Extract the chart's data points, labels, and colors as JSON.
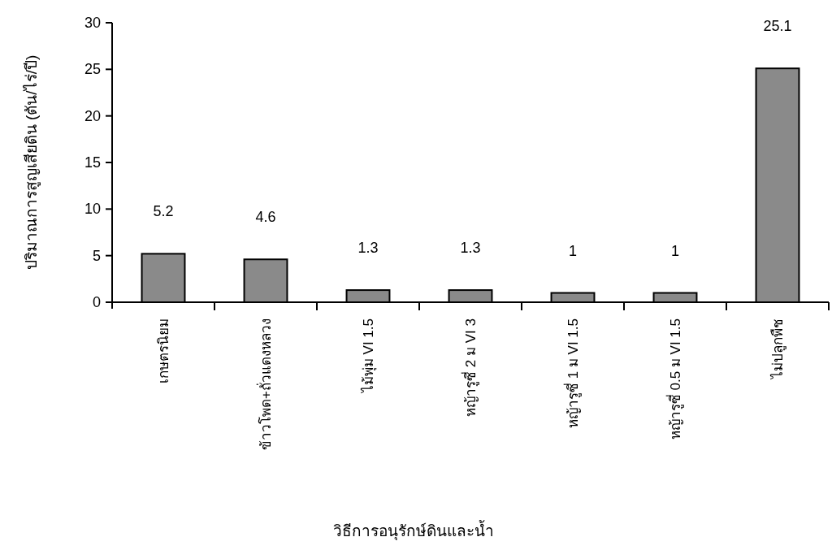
{
  "chart_data": {
    "type": "bar",
    "xlabel": "วิธีการอนุรักษ์ดินและน้ำ",
    "ylabel": "ปริมาณการสูญเสียดิน (ตัน/ไร่/ปี)",
    "categories": [
      "เกษตรนิยม",
      "ข้าวโพด+ถั่วแดงหลวง",
      "ไม้พุ่ม VI 1.5",
      "หญ้ารูซี่ 2 ม VI 3",
      "หญ้ารูซี่ 1 ม VI 1.5",
      "หญ้ารูซี่ 0.5 ม VI 1.5",
      "ไม่ปลูกพืช"
    ],
    "values": [
      5.2,
      4.6,
      1.3,
      1.3,
      1,
      1,
      25.1
    ],
    "color": "#8a8a8a",
    "ylim": [
      0,
      30
    ],
    "yticks": [
      0,
      5,
      10,
      15,
      20,
      25,
      30
    ],
    "data_labels": true,
    "grid": false
  }
}
